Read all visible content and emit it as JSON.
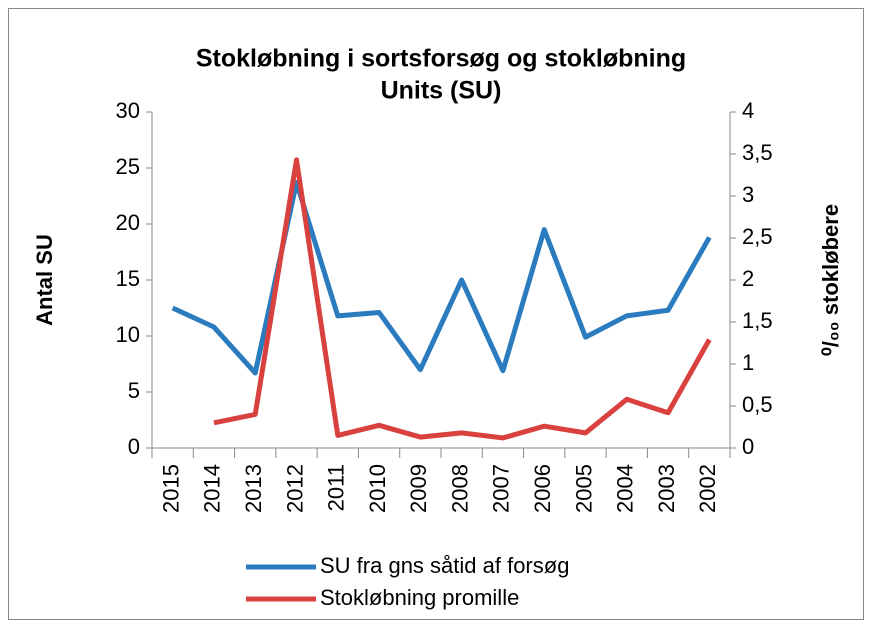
{
  "chart_data": {
    "type": "line",
    "title": [
      "Stokløbning i sortsforsøg og stokløbning",
      "Units (SU)"
    ],
    "ylabel": "Antal SU",
    "y2label": "⁰/₀₀ stokløbere",
    "categories": [
      "2015",
      "2014",
      "2013",
      "2012",
      "2011",
      "2010",
      "2009",
      "2008",
      "2007",
      "2006",
      "2005",
      "2004",
      "2003",
      "2002"
    ],
    "series": [
      {
        "name": "SU fra gns såtid af forsøg",
        "color": "#2b7bbf",
        "values": [
          12.5,
          10.8,
          6.7,
          23.7,
          11.8,
          12.1,
          7.0,
          15,
          6.9,
          19.5,
          9.9,
          11.8,
          12.3,
          18.8
        ]
      },
      {
        "name": "Stokløbning promille",
        "color": "#d9413f",
        "axis": "y2",
        "values": [
          null,
          0.3,
          0.4,
          3.43,
          0.15,
          0.27,
          0.13,
          0.18,
          0.12,
          0.26,
          0.18,
          0.58,
          0.42,
          1.29
        ]
      }
    ],
    "ylim": [
      0,
      30
    ],
    "yticks": [
      0,
      5,
      10,
      15,
      20,
      25,
      30
    ],
    "y2lim": [
      0,
      4
    ],
    "y2ticks": [
      0,
      {
        "value": 0.5,
        "label": "0,5"
      },
      1,
      {
        "value": 1.5,
        "label": "1,5"
      },
      2,
      {
        "value": 2.5,
        "label": "2,5"
      },
      3,
      {
        "value": 3.5,
        "label": "3,5"
      },
      4
    ],
    "legend": "bottom"
  }
}
